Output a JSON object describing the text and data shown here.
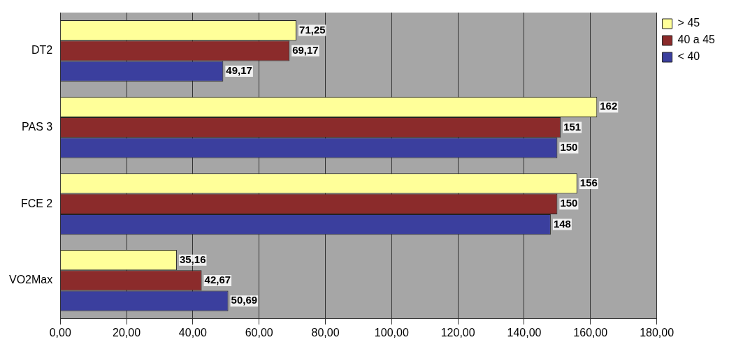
{
  "chart_data": {
    "type": "bar",
    "orientation": "horizontal",
    "categories": [
      "DT2",
      "PAS 3",
      "FCE 2",
      "VO2Max"
    ],
    "series": [
      {
        "name": "> 45",
        "color": "#ffff99",
        "values": [
          71.25,
          162,
          156,
          35.16
        ],
        "value_labels": [
          "71,25",
          "162",
          "156",
          "35,16"
        ]
      },
      {
        "name": "40 a 45",
        "color": "#8b2b2b",
        "values": [
          69.17,
          151,
          150,
          42.67
        ],
        "value_labels": [
          "69,17",
          "151",
          "150",
          "42,67"
        ]
      },
      {
        "name": "< 40",
        "color": "#3b3f9e",
        "values": [
          49.17,
          150,
          148,
          50.69
        ],
        "value_labels": [
          "49,17",
          "150",
          "148",
          "50,69"
        ]
      }
    ],
    "xlim": [
      0,
      180
    ],
    "xticks": [
      {
        "value": 0,
        "label": "0,00"
      },
      {
        "value": 20,
        "label": "20,00"
      },
      {
        "value": 40,
        "label": "40,00"
      },
      {
        "value": 60,
        "label": "60,00"
      },
      {
        "value": 80,
        "label": "80,00"
      },
      {
        "value": 100,
        "label": "100,00"
      },
      {
        "value": 120,
        "label": "120,00"
      },
      {
        "value": 140,
        "label": "140,00"
      },
      {
        "value": 160,
        "label": "160,00"
      },
      {
        "value": 180,
        "label": "180,00"
      }
    ],
    "grid": "x",
    "legend": "top right"
  }
}
